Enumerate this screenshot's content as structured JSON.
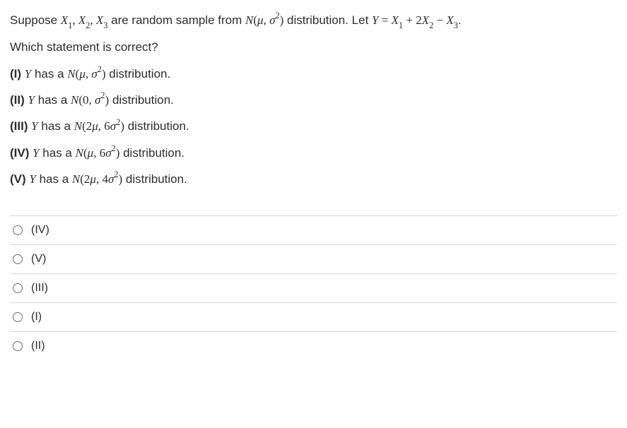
{
  "question": {
    "lead_1": "Suppose ",
    "rv": "X",
    "rv_sub1": "1",
    "rv_sub2": "2",
    "rv_sub3": "3",
    "lead_2": " are random sample from ",
    "dist_N": "N",
    "mu": "μ",
    "sigma": "σ",
    "two": "2",
    "lead_3": " distribution. Let ",
    "Y": "Y",
    "equals": " = ",
    "plus": " + ",
    "minus": " − ",
    "coef2": "2",
    "period": ".",
    "comma": ", ",
    "lparen": "(",
    "rparen": ")",
    "which": "Which statement is correct?"
  },
  "statements": {
    "s1_label": "(I) ",
    "s2_label": "(II) ",
    "s3_label": "(III) ",
    "s4_label": "(IV) ",
    "s5_label": "(V) ",
    "has_a": " has a ",
    "distribution": " distribution.",
    "zero": "0",
    "two_mu": "2",
    "six": "6",
    "four": "4"
  },
  "options": {
    "o1": "(IV)",
    "o2": "(V)",
    "o3": "(III)",
    "o4": "(I)",
    "o5": "(II)"
  },
  "colors": {
    "text": "#2d2d2d",
    "border": "#d8d8d8",
    "radio_border": "#6e6e6e",
    "background": "#ffffff"
  }
}
